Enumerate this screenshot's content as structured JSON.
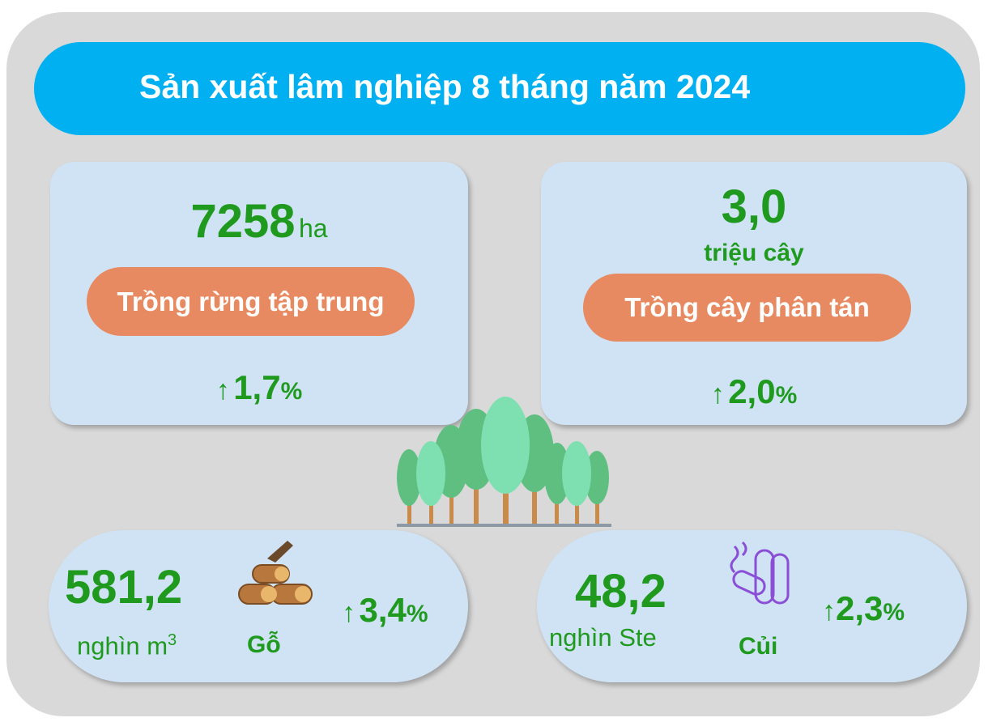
{
  "title": "Sản xuất lâm nghiệp 8 tháng năm 2024",
  "cards": [
    {
      "value": "7258",
      "unit": "ha",
      "label": "Trồng rừng tập trung",
      "change": "1,7",
      "change_unit": "%"
    },
    {
      "value": "3,0",
      "unit": "triệu cây",
      "label": "Trồng cây phân tán",
      "change": "2,0",
      "change_unit": "%"
    },
    {
      "value": "581,2",
      "unit": "nghìn m",
      "unit_sup": "3",
      "label": "Gỗ",
      "change": "3,4",
      "change_unit": "%"
    },
    {
      "value": "48,2",
      "unit": "nghìn Ste",
      "label": "Củi",
      "change": "2,3",
      "change_unit": "%"
    }
  ]
}
